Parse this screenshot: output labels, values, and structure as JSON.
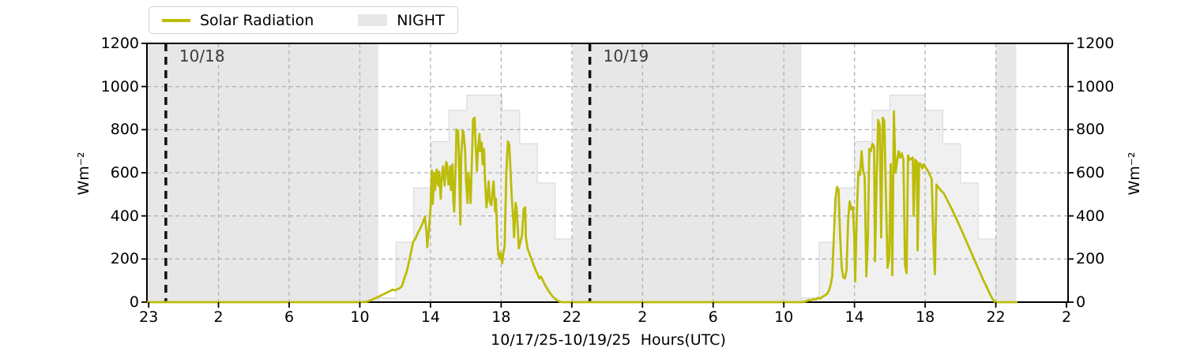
{
  "colors": {
    "line": "#bcbc0a",
    "night": "#e7e7e7",
    "stair_fill": "#f0f0f0",
    "stair_edge": "#dcdcdc",
    "grid": "#b3b3b3",
    "day_line": "#111111",
    "day_label": "#3c3c3c",
    "spine": "#000000"
  },
  "legend": {
    "items": [
      {
        "label": "Solar Radiation",
        "type": "line",
        "color": "#bcbc0a"
      },
      {
        "label": "NIGHT",
        "type": "patch",
        "color": "#e7e7e7"
      }
    ]
  },
  "axes": {
    "xlabel": "10/17/25-10/19/25  Hours(UTC)",
    "ylabel_left": "Wm⁻²",
    "ylabel_right": "Wm⁻²"
  },
  "chart_data": {
    "type": "line",
    "title": "",
    "xlabel": "10/17/25-10/19/25  Hours(UTC)",
    "ylabel": "Wm⁻²",
    "x_unit": "hours since plot start (axis labeled in UTC clock hours)",
    "xlim_hours": [
      0,
      52.14
    ],
    "ylim": [
      0,
      1200
    ],
    "grid": "dashed",
    "yticks": [
      0,
      200,
      400,
      600,
      800,
      1000,
      1200
    ],
    "xticks": [
      {
        "t": 0.1,
        "label": "23"
      },
      {
        "t": 4.05,
        "label": "2"
      },
      {
        "t": 8.05,
        "label": "6"
      },
      {
        "t": 12.05,
        "label": "10"
      },
      {
        "t": 16.05,
        "label": "14"
      },
      {
        "t": 20.05,
        "label": "18"
      },
      {
        "t": 24.05,
        "label": "22"
      },
      {
        "t": 28.05,
        "label": "2"
      },
      {
        "t": 32.05,
        "label": "6"
      },
      {
        "t": 36.05,
        "label": "10"
      },
      {
        "t": 40.05,
        "label": "14"
      },
      {
        "t": 44.05,
        "label": "18"
      },
      {
        "t": 48.05,
        "label": "22"
      },
      {
        "t": 52.05,
        "label": "2"
      }
    ],
    "day_markers": [
      {
        "t": 1.07,
        "label": "10/18"
      },
      {
        "t": 25.07,
        "label": "10/19"
      }
    ],
    "night_label": "NIGHT",
    "night_regions": [
      [
        0,
        13.1
      ],
      [
        24.09,
        37.05
      ],
      [
        48.05,
        49.21
      ]
    ],
    "clear_sky_steps": {
      "description": "light-gray hourly step envelope behind the data",
      "bin_hours": 1,
      "days": [
        {
          "start": 13.1,
          "values": [
            20,
            278,
            530,
            745,
            890,
            960,
            960,
            890,
            735,
            553,
            293
          ]
        },
        {
          "start": 37.05,
          "values": [
            20,
            278,
            530,
            745,
            890,
            960,
            960,
            890,
            735,
            553,
            293
          ]
        }
      ]
    },
    "series": [
      {
        "name": "Solar Radiation",
        "color": "#bcbc0a",
        "points": [
          [
            0,
            0
          ],
          [
            6,
            0
          ],
          [
            12.25,
            0
          ],
          [
            12.47,
            3
          ],
          [
            12.69,
            10
          ],
          [
            12.92,
            18
          ],
          [
            13.14,
            26
          ],
          [
            13.36,
            36
          ],
          [
            13.59,
            45
          ],
          [
            13.77,
            52
          ],
          [
            13.9,
            58
          ],
          [
            14.03,
            55
          ],
          [
            14.17,
            60
          ],
          [
            14.3,
            64
          ],
          [
            14.44,
            75
          ],
          [
            14.57,
            110
          ],
          [
            14.7,
            140
          ],
          [
            14.79,
            170
          ],
          [
            14.88,
            205
          ],
          [
            14.97,
            240
          ],
          [
            15.06,
            278
          ],
          [
            15.2,
            295
          ],
          [
            15.33,
            320
          ],
          [
            15.46,
            340
          ],
          [
            15.6,
            365
          ],
          [
            15.73,
            395
          ],
          [
            15.82,
            330
          ],
          [
            15.87,
            255
          ],
          [
            15.96,
            330
          ],
          [
            16.05,
            430
          ],
          [
            16.13,
            610
          ],
          [
            16.18,
            455
          ],
          [
            16.27,
            600
          ],
          [
            16.31,
            520
          ],
          [
            16.4,
            615
          ],
          [
            16.49,
            540
          ],
          [
            16.54,
            605
          ],
          [
            16.63,
            480
          ],
          [
            16.67,
            560
          ],
          [
            16.76,
            630
          ],
          [
            16.85,
            540
          ],
          [
            16.94,
            650
          ],
          [
            16.98,
            640
          ],
          [
            17.07,
            545
          ],
          [
            17.16,
            630
          ],
          [
            17.21,
            520
          ],
          [
            17.3,
            640
          ],
          [
            17.34,
            480
          ],
          [
            17.39,
            420
          ],
          [
            17.48,
            640
          ],
          [
            17.52,
            800
          ],
          [
            17.61,
            795
          ],
          [
            17.65,
            700
          ],
          [
            17.74,
            360
          ],
          [
            17.79,
            680
          ],
          [
            17.88,
            795
          ],
          [
            17.92,
            790
          ],
          [
            18.01,
            700
          ],
          [
            18.06,
            560
          ],
          [
            18.15,
            460
          ],
          [
            18.19,
            600
          ],
          [
            18.28,
            530
          ],
          [
            18.32,
            460
          ],
          [
            18.41,
            700
          ],
          [
            18.46,
            848
          ],
          [
            18.55,
            855
          ],
          [
            18.59,
            760
          ],
          [
            18.68,
            610
          ],
          [
            18.73,
            700
          ],
          [
            18.82,
            780
          ],
          [
            18.86,
            700
          ],
          [
            18.95,
            740
          ],
          [
            19,
            640
          ],
          [
            19.08,
            710
          ],
          [
            19.13,
            580
          ],
          [
            19.22,
            440
          ],
          [
            19.26,
            480
          ],
          [
            19.35,
            560
          ],
          [
            19.4,
            470
          ],
          [
            19.49,
            450
          ],
          [
            19.58,
            530
          ],
          [
            19.62,
            560
          ],
          [
            19.71,
            420
          ],
          [
            19.75,
            480
          ],
          [
            19.84,
            280
          ],
          [
            19.89,
            220
          ],
          [
            19.98,
            200
          ],
          [
            20.02,
            230
          ],
          [
            20.11,
            180
          ],
          [
            20.16,
            220
          ],
          [
            20.25,
            260
          ],
          [
            20.34,
            600
          ],
          [
            20.43,
            745
          ],
          [
            20.51,
            730
          ],
          [
            20.56,
            640
          ],
          [
            20.65,
            485
          ],
          [
            20.74,
            380
          ],
          [
            20.78,
            300
          ],
          [
            20.87,
            460
          ],
          [
            20.92,
            440
          ],
          [
            21.01,
            320
          ],
          [
            21.05,
            250
          ],
          [
            21.14,
            280
          ],
          [
            21.23,
            310
          ],
          [
            21.32,
            430
          ],
          [
            21.41,
            440
          ],
          [
            21.45,
            300
          ],
          [
            21.54,
            250
          ],
          [
            21.63,
            230
          ],
          [
            21.72,
            210
          ],
          [
            21.81,
            190
          ],
          [
            21.9,
            170
          ],
          [
            21.99,
            150
          ],
          [
            22.08,
            135
          ],
          [
            22.21,
            110
          ],
          [
            22.3,
            118
          ],
          [
            22.39,
            105
          ],
          [
            22.48,
            88
          ],
          [
            22.57,
            75
          ],
          [
            22.66,
            62
          ],
          [
            22.75,
            50
          ],
          [
            22.84,
            40
          ],
          [
            22.93,
            30
          ],
          [
            23.02,
            22
          ],
          [
            23.11,
            15
          ],
          [
            23.2,
            9
          ],
          [
            23.33,
            4
          ],
          [
            23.47,
            0
          ],
          [
            24.1,
            0
          ],
          [
            30,
            0
          ],
          [
            36.5,
            0
          ],
          [
            37.1,
            0
          ],
          [
            37.18,
            2
          ],
          [
            37.32,
            4
          ],
          [
            37.45,
            10
          ],
          [
            37.59,
            8
          ],
          [
            37.72,
            14
          ],
          [
            37.86,
            12
          ],
          [
            37.99,
            20
          ],
          [
            38.12,
            17
          ],
          [
            38.26,
            26
          ],
          [
            38.39,
            32
          ],
          [
            38.52,
            40
          ],
          [
            38.61,
            55
          ],
          [
            38.7,
            80
          ],
          [
            38.79,
            120
          ],
          [
            38.88,
            300
          ],
          [
            38.97,
            480
          ],
          [
            39.06,
            534
          ],
          [
            39.15,
            520
          ],
          [
            39.24,
            300
          ],
          [
            39.33,
            160
          ],
          [
            39.42,
            115
          ],
          [
            39.51,
            110
          ],
          [
            39.6,
            150
          ],
          [
            39.69,
            380
          ],
          [
            39.78,
            467
          ],
          [
            39.87,
            430
          ],
          [
            39.96,
            440
          ],
          [
            40.04,
            300
          ],
          [
            40.09,
            96
          ],
          [
            40.18,
            400
          ],
          [
            40.27,
            605
          ],
          [
            40.36,
            590
          ],
          [
            40.45,
            700
          ],
          [
            40.54,
            610
          ],
          [
            40.63,
            580
          ],
          [
            40.72,
            120
          ],
          [
            40.81,
            300
          ],
          [
            40.89,
            710
          ],
          [
            40.98,
            700
          ],
          [
            41.07,
            735
          ],
          [
            41.16,
            720
          ],
          [
            41.21,
            190
          ],
          [
            41.3,
            560
          ],
          [
            41.39,
            845
          ],
          [
            41.48,
            820
          ],
          [
            41.56,
            300
          ],
          [
            41.65,
            855
          ],
          [
            41.74,
            840
          ],
          [
            41.83,
            500
          ],
          [
            41.92,
            160
          ],
          [
            42.01,
            200
          ],
          [
            42.1,
            640
          ],
          [
            42.19,
            125
          ],
          [
            42.28,
            885
          ],
          [
            42.37,
            600
          ],
          [
            42.46,
            650
          ],
          [
            42.55,
            700
          ],
          [
            42.64,
            670
          ],
          [
            42.73,
            690
          ],
          [
            42.82,
            660
          ],
          [
            42.91,
            170
          ],
          [
            43,
            135
          ],
          [
            43.08,
            680
          ],
          [
            43.17,
            660
          ],
          [
            43.26,
            665
          ],
          [
            43.35,
            670
          ],
          [
            43.4,
            400
          ],
          [
            43.49,
            660
          ],
          [
            43.58,
            650
          ],
          [
            43.62,
            240
          ],
          [
            43.71,
            645
          ],
          [
            43.8,
            640
          ],
          [
            43.89,
            620
          ],
          [
            43.98,
            640
          ],
          [
            44.07,
            625
          ],
          [
            44.16,
            615
          ],
          [
            44.25,
            600
          ],
          [
            44.34,
            585
          ],
          [
            44.42,
            570
          ],
          [
            44.51,
            300
          ],
          [
            44.6,
            130
          ],
          [
            44.69,
            545
          ],
          [
            44.78,
            535
          ],
          [
            44.92,
            520
          ],
          [
            45.1,
            505
          ],
          [
            45.32,
            470
          ],
          [
            45.54,
            435
          ],
          [
            45.77,
            395
          ],
          [
            45.99,
            355
          ],
          [
            46.21,
            315
          ],
          [
            46.44,
            272
          ],
          [
            46.66,
            230
          ],
          [
            46.88,
            188
          ],
          [
            47.11,
            146
          ],
          [
            47.33,
            105
          ],
          [
            47.56,
            65
          ],
          [
            47.73,
            35
          ],
          [
            47.87,
            15
          ],
          [
            48,
            0
          ],
          [
            48.6,
            0
          ],
          [
            49.21,
            0
          ]
        ]
      }
    ]
  }
}
